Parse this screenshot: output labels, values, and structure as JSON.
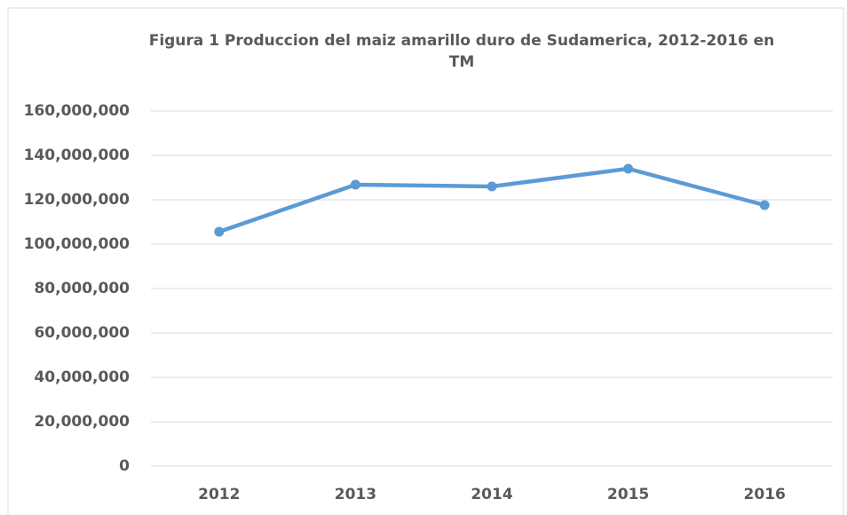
{
  "chart_data": {
    "type": "line",
    "title": "Figura 1 Produccion del maiz amarillo duro de Sudamerica, 2012-2016 en TM",
    "categories": [
      "2012",
      "2013",
      "2014",
      "2015",
      "2016"
    ],
    "series": [
      {
        "name": "Produccion",
        "color": "#5b9bd5",
        "values": [
          105600000,
          126800000,
          126000000,
          134000000,
          117600000
        ]
      }
    ],
    "ylim": [
      0,
      160000000
    ],
    "yticks": [
      0,
      {
        "value": 20000000,
        "label": "20,000,000"
      },
      {
        "value": 40000000,
        "label": "40,000,000"
      },
      {
        "value": 60000000,
        "label": "60,000,000"
      },
      {
        "value": 80000000,
        "label": "80,000,000"
      },
      {
        "value": 100000000,
        "label": "100,000,000"
      },
      {
        "value": 120000000,
        "label": "120,000,000"
      },
      {
        "value": 140000000,
        "label": "140,000,000"
      },
      {
        "value": 160000000,
        "label": "160,000,000"
      }
    ],
    "grid": true
  }
}
